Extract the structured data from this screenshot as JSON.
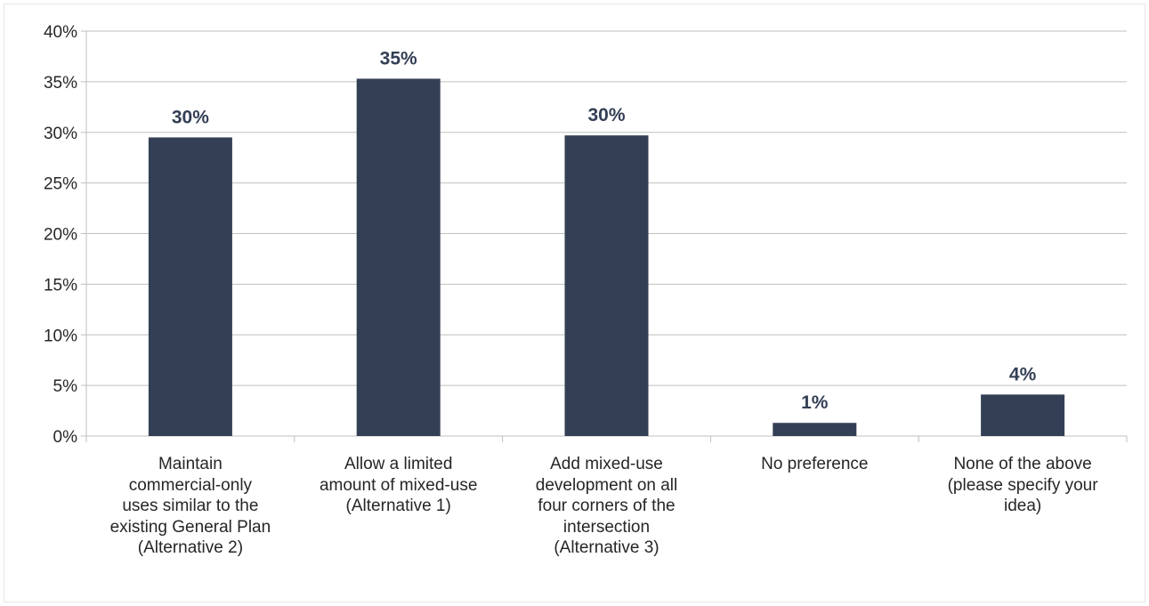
{
  "chart_data": {
    "type": "bar",
    "categories": [
      "Maintain\ncommercial-only\nuses similar to the\nexisting General Plan\n(Alternative 2)",
      "Allow a limited\namount of mixed-use\n(Alternative 1)",
      "Add mixed-use\ndevelopment on all\nfour corners of the\nintersection\n(Alternative 3)",
      "No preference",
      "None of the above\n(please specify your\nidea)"
    ],
    "values": [
      29.5,
      35.3,
      29.7,
      1.3,
      4.1
    ],
    "data_labels": [
      "30%",
      "35%",
      "30%",
      "1%",
      "4%"
    ],
    "yticks": [
      "0%",
      "5%",
      "10%",
      "15%",
      "20%",
      "25%",
      "30%",
      "35%",
      "40%"
    ],
    "ylim": [
      0,
      40
    ],
    "grid": true,
    "legend": "none",
    "colors": {
      "bar": "#333f55",
      "grid": "#bfbfbf",
      "label": "#333f55"
    }
  }
}
